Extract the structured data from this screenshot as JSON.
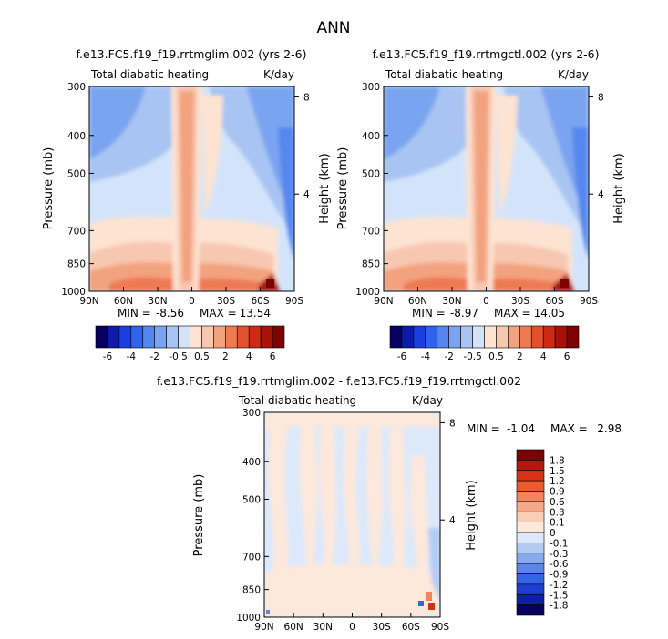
{
  "figure_title": "ANN",
  "chart_data": [
    {
      "type": "heatmap",
      "title": "f.e13.FC5.f19_f19.rrtmglim.002 (yrs 2-6)",
      "subtitle_left": "Total diabatic heating",
      "subtitle_right": "K/day",
      "ylabel": "Pressure (mb)",
      "ylabel_right": "Height (km)",
      "x_ticks": [
        "90N",
        "60N",
        "30N",
        "0",
        "30S",
        "60S",
        "90S"
      ],
      "x_values": [
        90,
        60,
        30,
        0,
        -30,
        -60,
        -90
      ],
      "xlim": [
        90,
        -90
      ],
      "y_ticks": [
        "300",
        "400",
        "500",
        "700",
        "850",
        "1000"
      ],
      "y_values": [
        300,
        400,
        500,
        700,
        850,
        1000
      ],
      "ylim": [
        1000,
        300
      ],
      "y_scale": "log",
      "right_ticks": [
        "8",
        "4"
      ],
      "right_values": [
        8,
        4
      ],
      "min_label": "MIN =",
      "min_value": "-8.56",
      "max_label": "MAX =",
      "max_value": "13.54",
      "colorbar": {
        "orientation": "horizontal",
        "labels": [
          "-6",
          "-4",
          "-2",
          "-0.5",
          "0.5",
          "2",
          "4",
          "6"
        ],
        "levels": [
          -6,
          -5,
          -4,
          -3,
          -2,
          -1,
          -0.5,
          0,
          0.5,
          1,
          2,
          3,
          4,
          5,
          6
        ],
        "colors": [
          "#07005f",
          "#0d1ba8",
          "#1a3ee0",
          "#2f63ec",
          "#5487ee",
          "#7aa4f0",
          "#a8c4f2",
          "#d3e4fa",
          "#fde3d2",
          "#f8c7b0",
          "#f2a27e",
          "#ee7a52",
          "#e4502c",
          "#cc2a12",
          "#a81208",
          "#7e0202"
        ]
      },
      "features": [
        {
          "kind": "tropical-heating-column",
          "lat": 5,
          "p_top": 300,
          "p_bottom": 1000,
          "value": 2
        },
        {
          "kind": "boundary-layer-heating",
          "lat_range": [
            90,
            -90
          ],
          "p_top": 850,
          "value": 2
        },
        {
          "kind": "max-near-surface",
          "lat": -82,
          "p": 980,
          "value": 13.54
        },
        {
          "kind": "cooling-upper-flanks",
          "p_range": [
            300,
            700
          ],
          "value": -1
        }
      ]
    },
    {
      "type": "heatmap",
      "title": "f.e13.FC5.f19_f19.rrtmgctl.002 (yrs 2-6)",
      "subtitle_left": "Total diabatic heating",
      "subtitle_right": "K/day",
      "ylabel": "Pressure (mb)",
      "ylabel_right": "Height (km)",
      "x_ticks": [
        "90N",
        "60N",
        "30N",
        "0",
        "30S",
        "60S",
        "90S"
      ],
      "x_values": [
        90,
        60,
        30,
        0,
        -30,
        -60,
        -90
      ],
      "xlim": [
        90,
        -90
      ],
      "y_ticks": [
        "300",
        "400",
        "500",
        "700",
        "850",
        "1000"
      ],
      "y_values": [
        300,
        400,
        500,
        700,
        850,
        1000
      ],
      "ylim": [
        1000,
        300
      ],
      "y_scale": "log",
      "right_ticks": [
        "8",
        "4"
      ],
      "right_values": [
        8,
        4
      ],
      "min_label": "MIN =",
      "min_value": "-8.97",
      "max_label": "MAX =",
      "max_value": "14.05",
      "colorbar": {
        "orientation": "horizontal",
        "labels": [
          "-6",
          "-4",
          "-2",
          "-0.5",
          "0.5",
          "2",
          "4",
          "6"
        ],
        "levels": [
          -6,
          -5,
          -4,
          -3,
          -2,
          -1,
          -0.5,
          0,
          0.5,
          1,
          2,
          3,
          4,
          5,
          6
        ],
        "colors": [
          "#07005f",
          "#0d1ba8",
          "#1a3ee0",
          "#2f63ec",
          "#5487ee",
          "#7aa4f0",
          "#a8c4f2",
          "#d3e4fa",
          "#fde3d2",
          "#f8c7b0",
          "#f2a27e",
          "#ee7a52",
          "#e4502c",
          "#cc2a12",
          "#a81208",
          "#7e0202"
        ]
      },
      "features": [
        {
          "kind": "tropical-heating-column",
          "lat": 5,
          "p_top": 300,
          "p_bottom": 1000,
          "value": 2
        },
        {
          "kind": "boundary-layer-heating",
          "lat_range": [
            90,
            -90
          ],
          "p_top": 850,
          "value": 2
        },
        {
          "kind": "max-near-surface",
          "lat": -82,
          "p": 980,
          "value": 14.05
        },
        {
          "kind": "cooling-upper-flanks",
          "p_range": [
            300,
            700
          ],
          "value": -1
        }
      ]
    },
    {
      "type": "heatmap",
      "title": "f.e13.FC5.f19_f19.rrtmglim.002 - f.e13.FC5.f19_f19.rrtmgctl.002",
      "subtitle_left": "Total diabatic heating",
      "subtitle_right": "K/day",
      "ylabel": "Pressure (mb)",
      "ylabel_right": "Height (km)",
      "x_ticks": [
        "90N",
        "60N",
        "30N",
        "0",
        "30S",
        "60S",
        "90S"
      ],
      "x_values": [
        90,
        60,
        30,
        0,
        -30,
        -60,
        -90
      ],
      "xlim": [
        90,
        -90
      ],
      "y_ticks": [
        "300",
        "400",
        "500",
        "700",
        "850",
        "1000"
      ],
      "y_values": [
        300,
        400,
        500,
        700,
        850,
        1000
      ],
      "ylim": [
        1000,
        300
      ],
      "y_scale": "log",
      "right_ticks": [
        "8",
        "4"
      ],
      "right_values": [
        8,
        4
      ],
      "min_label": "MIN =",
      "min_value": "-1.04",
      "max_label": "MAX =",
      "max_value": "2.98",
      "colorbar": {
        "orientation": "vertical",
        "labels": [
          "1.8",
          "1.5",
          "1.2",
          "0.9",
          "0.6",
          "0.3",
          "0.1",
          "0",
          "-0.1",
          "-0.3",
          "-0.6",
          "-0.9",
          "-1.2",
          "-1.5",
          "-1.8"
        ],
        "levels": [
          1.8,
          1.5,
          1.2,
          0.9,
          0.6,
          0.3,
          0.1,
          0,
          -0.1,
          -0.3,
          -0.6,
          -0.9,
          -1.2,
          -1.5,
          -1.8
        ],
        "colors": [
          "#7e0202",
          "#b01a0a",
          "#d63316",
          "#ee5a30",
          "#f2835c",
          "#f5a98a",
          "#f9cdb6",
          "#fde8dc",
          "#dce9fb",
          "#b3cbf3",
          "#87a9ee",
          "#5a86ea",
          "#3563e6",
          "#1c3fd2",
          "#0e1fa6",
          "#07005f"
        ]
      },
      "features": [
        {
          "kind": "weak-positive-bands",
          "value": 0.05
        },
        {
          "kind": "weak-negative-bands",
          "value": -0.05
        },
        {
          "kind": "max-near-surface",
          "lat": -85,
          "p": 970,
          "value": 2.98
        }
      ]
    }
  ]
}
